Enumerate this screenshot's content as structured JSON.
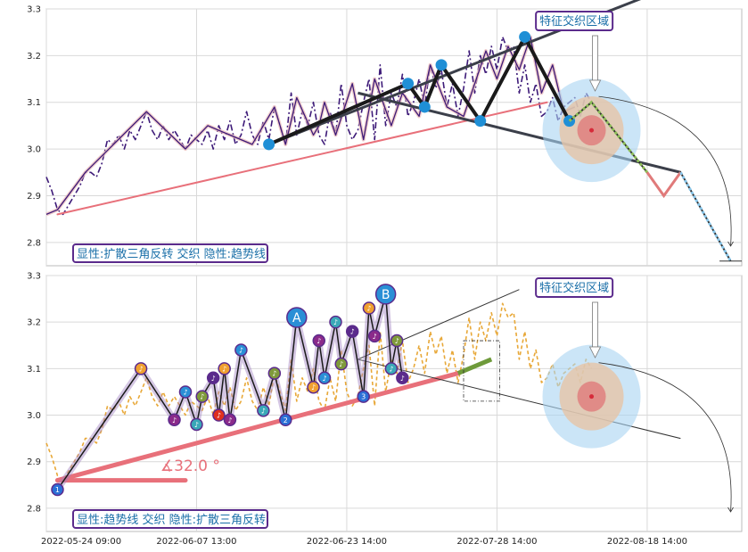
{
  "chart_data": [
    {
      "type": "line",
      "panel": "top",
      "ylim": [
        2.75,
        3.3
      ],
      "yticks": [
        "2.8",
        "2.9",
        "3.0",
        "3.1",
        "3.2",
        "3.3"
      ],
      "series": [
        {
          "style": "dash-dot",
          "color": "#3d1a78",
          "x": [
            0,
            2,
            4,
            6,
            8,
            10,
            12,
            14,
            16,
            18,
            20,
            22,
            24,
            26,
            28,
            30,
            32,
            34,
            36,
            38,
            40,
            42,
            44,
            46,
            48,
            50,
            52,
            54,
            56,
            58,
            60,
            62,
            64,
            66,
            68,
            70,
            72,
            74,
            76,
            78,
            80,
            82,
            84,
            86,
            88,
            90,
            92,
            94,
            96,
            98,
            100,
            102,
            104,
            106,
            108,
            110,
            112,
            114,
            116,
            118,
            120,
            122,
            124,
            126,
            128,
            130,
            132,
            134,
            136,
            138,
            140,
            142,
            144,
            146,
            148,
            150,
            152,
            154,
            156,
            158,
            160,
            162,
            164,
            166,
            168,
            170,
            172,
            174,
            176,
            178,
            180,
            182,
            184,
            186,
            188,
            190,
            192,
            194,
            196
          ],
          "y": [
            2.94,
            2.91,
            2.87,
            2.86,
            2.88,
            2.9,
            2.92,
            2.95,
            2.95,
            2.94,
            2.97,
            3.02,
            3.01,
            3.03,
            3.0,
            3.04,
            3.02,
            3.05,
            3.08,
            3.04,
            3.02,
            3.05,
            3.02,
            3.04,
            3.02,
            3.0,
            3.03,
            3.02,
            3.01,
            3.04,
            3.0,
            3.05,
            3.02,
            3.06,
            3.01,
            3.03,
            3.08,
            3.03,
            3.01,
            3.06,
            3.02,
            3.09,
            3.05,
            3.01,
            3.12,
            3.03,
            3.08,
            3.05,
            3.1,
            3.03,
            3.01,
            3.08,
            3.03,
            3.14,
            3.05,
            3.02,
            3.04,
            3.1,
            3.15,
            3.02,
            3.18,
            3.05,
            3.12,
            3.09,
            3.16,
            3.07,
            3.1,
            3.15,
            3.09,
            3.18,
            3.13,
            3.17,
            3.09,
            3.14,
            3.07,
            3.13,
            3.21,
            3.12,
            3.2,
            3.16,
            3.22,
            3.17,
            3.24,
            3.21,
            3.22,
            3.12,
            3.18,
            3.1,
            3.14,
            3.07,
            3.08,
            3.11,
            3.06,
            3.09,
            3.1,
            3.11,
            3.07,
            3.12,
            3.1
          ]
        },
        {
          "style": "solid",
          "color": "#3d1a78",
          "x": [
            0,
            4,
            14,
            36,
            50,
            58,
            74,
            82,
            84,
            86,
            90,
            96,
            98,
            100,
            104,
            110,
            114,
            118,
            124,
            128,
            134,
            138,
            144,
            150,
            158,
            162,
            166,
            170,
            174,
            178,
            182,
            186,
            190
          ],
          "y": [
            2.86,
            2.87,
            2.95,
            3.08,
            3.0,
            3.05,
            3.01,
            3.09,
            3.05,
            3.01,
            3.11,
            3.03,
            3.05,
            3.1,
            3.03,
            3.14,
            3.02,
            3.15,
            3.05,
            3.12,
            3.07,
            3.18,
            3.09,
            3.07,
            3.21,
            3.15,
            3.22,
            3.17,
            3.24,
            3.12,
            3.18,
            3.08,
            3.09
          ]
        }
      ],
      "trendline": {
        "x": [
          4,
          180
        ],
        "y": [
          2.86,
          3.1
        ]
      },
      "triangle": {
        "upper": {
          "x": [
            80,
            230
          ],
          "y": [
            3.01,
            3.36
          ]
        },
        "lower": {
          "x": [
            112,
            228
          ],
          "y": [
            3.12,
            2.95
          ]
        }
      },
      "pattern_points": {
        "x": [
          80,
          130,
          136,
          142,
          156,
          172,
          188
        ],
        "y": [
          3.01,
          3.14,
          3.09,
          3.18,
          3.06,
          3.24,
          3.06
        ]
      },
      "projection": {
        "x": [
          188,
          196,
          216,
          222,
          228,
          246
        ],
        "y": [
          3.06,
          3.1,
          2.95,
          2.9,
          2.95,
          2.76
        ]
      },
      "labels": {
        "corner": "显性:扩散三角反转 交织 隐性:趋势线",
        "badge": "特征交织区域"
      }
    },
    {
      "type": "line",
      "panel": "bottom",
      "ylim": [
        2.75,
        3.3
      ],
      "yticks": [
        "2.8",
        "2.9",
        "3.0",
        "3.1",
        "3.2",
        "3.3"
      ],
      "series": [
        {
          "style": "dashed",
          "color": "#e8a838",
          "x": [
            0,
            2,
            4,
            6,
            8,
            10,
            12,
            14,
            16,
            18,
            20,
            22,
            24,
            26,
            28,
            30,
            32,
            34,
            36,
            38,
            40,
            42,
            44,
            46,
            48,
            50,
            52,
            54,
            56,
            58,
            60,
            62,
            64,
            66,
            68,
            70,
            72,
            74,
            76,
            78,
            80,
            82,
            84,
            86,
            88,
            90,
            92,
            94,
            96,
            98,
            100,
            102,
            104,
            106,
            108,
            110,
            112,
            114,
            116,
            118,
            120,
            122,
            124,
            126,
            128,
            130,
            132,
            134,
            136,
            138,
            140,
            142,
            144,
            146,
            148,
            150,
            152,
            154,
            156,
            158,
            160,
            162,
            164,
            166,
            168,
            170,
            172,
            174,
            176,
            178,
            180,
            182,
            184,
            186,
            188,
            190,
            192,
            194,
            196
          ],
          "y": [
            2.94,
            2.91,
            2.87,
            2.86,
            2.88,
            2.9,
            2.92,
            2.95,
            2.95,
            2.94,
            2.97,
            3.02,
            3.01,
            3.03,
            3.0,
            3.04,
            3.02,
            3.05,
            3.08,
            3.04,
            3.02,
            3.05,
            3.02,
            3.04,
            3.02,
            3.0,
            3.03,
            3.02,
            3.01,
            3.04,
            3.0,
            3.05,
            3.02,
            3.06,
            3.01,
            3.03,
            3.08,
            3.03,
            3.01,
            3.06,
            3.02,
            3.09,
            3.05,
            3.01,
            3.12,
            3.03,
            3.08,
            3.05,
            3.1,
            3.03,
            3.01,
            3.08,
            3.03,
            3.14,
            3.05,
            3.02,
            3.04,
            3.1,
            3.15,
            3.02,
            3.18,
            3.05,
            3.12,
            3.09,
            3.16,
            3.07,
            3.1,
            3.15,
            3.09,
            3.18,
            3.13,
            3.17,
            3.09,
            3.14,
            3.07,
            3.13,
            3.21,
            3.12,
            3.2,
            3.16,
            3.22,
            3.17,
            3.24,
            3.21,
            3.22,
            3.12,
            3.18,
            3.1,
            3.14,
            3.07,
            3.08,
            3.11,
            3.06,
            3.09,
            3.1,
            3.11,
            3.07,
            3.12,
            3.1
          ]
        }
      ],
      "trendline": {
        "x": [
          4,
          148
        ],
        "y": [
          2.86,
          3.09
        ]
      },
      "trend_extension": {
        "x": [
          148,
          160
        ],
        "y": [
          3.09,
          3.12
        ]
      },
      "angle_label": "∡32.0 °",
      "triangle": {
        "upper": {
          "x": [
            112,
            170
          ],
          "y": [
            3.12,
            3.27
          ]
        },
        "lower": {
          "x": [
            112,
            228
          ],
          "y": [
            3.12,
            2.95
          ]
        }
      },
      "wave_markers": {
        "x": [
          4,
          34,
          46,
          50,
          54,
          56,
          60,
          62,
          64,
          66,
          70,
          78,
          82,
          86,
          90,
          96,
          98,
          100,
          104,
          106,
          110,
          114,
          116,
          118,
          122,
          124,
          126,
          128
        ],
        "y": [
          2.84,
          3.1,
          2.99,
          3.05,
          2.98,
          3.04,
          3.08,
          3.0,
          3.1,
          2.99,
          3.14,
          3.01,
          3.09,
          2.99,
          3.21,
          3.06,
          3.16,
          3.08,
          3.2,
          3.11,
          3.18,
          3.04,
          3.23,
          3.17,
          3.26,
          3.1,
          3.16,
          3.08
        ],
        "glyphs": [
          "1",
          "♪",
          "♪",
          "♪",
          "♪",
          "♪",
          "♪",
          "♪",
          "♪",
          "♪",
          "♪",
          "♪",
          "♪",
          "2",
          "A",
          "♪",
          "♪",
          "♪",
          "♪",
          "♪",
          "♪",
          "3",
          "♪",
          "♪",
          "B",
          "♪",
          "♪",
          "♪"
        ]
      },
      "labels": {
        "corner": "显性:趋势线 交织 隐性:扩散三角反转",
        "badge": "特征交织区域"
      }
    }
  ],
  "x_axis": {
    "tick_labels": [
      "2022-05-24 09:00",
      "2022-06-07 13:00",
      "2022-06-23 14:00",
      "2022-07-28 14:00",
      "2022-08-18 14:00"
    ]
  },
  "colors": {
    "trend": "#e8707a",
    "grid": "#d9d9d9",
    "badge_border": "#5b2b8c",
    "badge_text": "#1a6fa8",
    "marker": "#1f8fd6"
  }
}
